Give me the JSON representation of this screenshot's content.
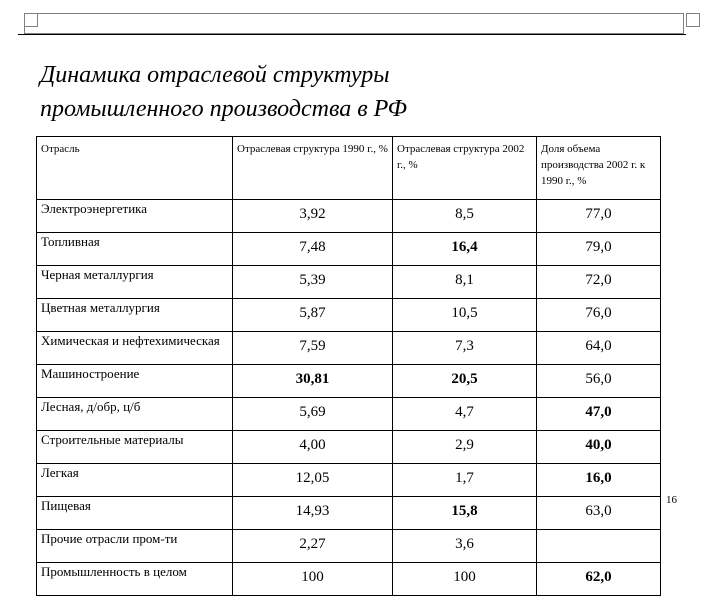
{
  "title_line1": "Динамика отраслевой структуры",
  "title_line2": "промышленного производства в РФ",
  "slide_number": "16",
  "table": {
    "headers": [
      "Отрасль",
      "Отраслевая структура 1990 г., %",
      "Отраслевая структура 2002 г., %",
      "Доля объема производства 2002 г. к 1990 г., %"
    ],
    "rows": [
      {
        "name": "Электроэнергетика",
        "v1990": "3,92",
        "v2002": "8,5",
        "share": "77,0"
      },
      {
        "name": "Топливная",
        "v1990": "7,48",
        "v2002": "16,4",
        "share": "79,0"
      },
      {
        "name": "Черная металлургия",
        "v1990": "5,39",
        "v2002": "8,1",
        "share": "72,0"
      },
      {
        "name": "Цветная металлургия",
        "v1990": "5,87",
        "v2002": "10,5",
        "share": "76,0"
      },
      {
        "name": "Химическая и нефтехимическая",
        "v1990": "7,59",
        "v2002": "7,3",
        "share": "64,0"
      },
      {
        "name": "Машиностроение",
        "v1990": "30,81",
        "v2002": "20,5",
        "share": "56,0"
      },
      {
        "name": "Лесная, д/обр, ц/б",
        "v1990": "5,69",
        "v2002": "4,7",
        "share": "47,0"
      },
      {
        "name": "Строительные материалы",
        "v1990": "4,00",
        "v2002": "2,9",
        "share": "40,0"
      },
      {
        "name": "Легкая",
        "v1990": "12,05",
        "v2002": "1,7",
        "share": "16,0"
      },
      {
        "name": "Пищевая",
        "v1990": "14,93",
        "v2002": "15,8",
        "share": "63,0"
      },
      {
        "name": "Прочие отрасли пром-ти",
        "v1990": "2,27",
        "v2002": "3,6",
        "share": ""
      },
      {
        "name": "Промышленность в целом",
        "v1990": "100",
        "v2002": "100",
        "share": "62,0"
      }
    ]
  }
}
